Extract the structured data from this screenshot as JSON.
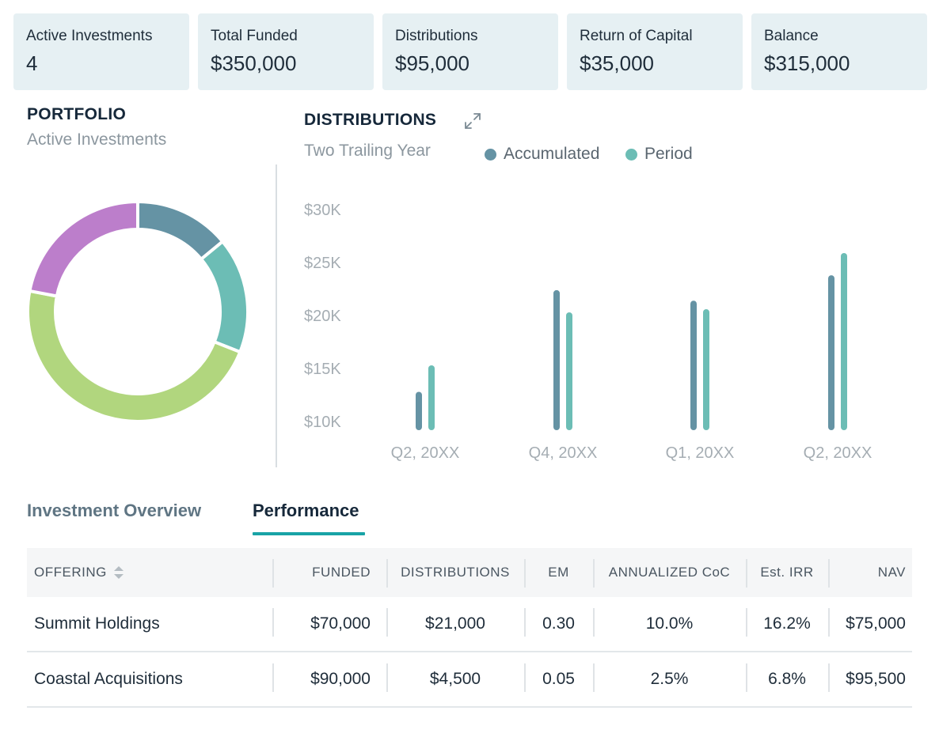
{
  "stats": [
    {
      "label": "Active Investments",
      "value": "4"
    },
    {
      "label": "Total Funded",
      "value": "$350,000"
    },
    {
      "label": "Distributions",
      "value": "$95,000"
    },
    {
      "label": "Return of Capital",
      "value": "$35,000"
    },
    {
      "label": "Balance",
      "value": "$315,000"
    }
  ],
  "portfolio": {
    "title": "PORTFOLIO",
    "subtitle": "Active Investments"
  },
  "distributions": {
    "title": "DISTRIBUTIONS",
    "subtitle": "Two Trailing Year",
    "expand_icon": "expand-icon",
    "legend": [
      {
        "label": "Accumulated",
        "color": "#6593a4"
      },
      {
        "label": "Period",
        "color": "#6cbdb5"
      }
    ]
  },
  "chart_data": [
    {
      "type": "pie",
      "title": "PORTFOLIO",
      "subtitle": "Active Investments",
      "donut": true,
      "slices": [
        {
          "value": 14,
          "color": "#6593a4"
        },
        {
          "value": 17,
          "color": "#6cbdb5"
        },
        {
          "value": 47,
          "color": "#b1d67e"
        },
        {
          "value": 22,
          "color": "#bc7ecb"
        }
      ]
    },
    {
      "type": "bar",
      "title": "DISTRIBUTIONS",
      "subtitle": "Two Trailing Year",
      "categories": [
        "Q2, 20XX",
        "Q4, 20XX",
        "Q1, 20XX",
        "Q2, 20XX"
      ],
      "series": [
        {
          "name": "Accumulated",
          "color": "#6593a4",
          "values": [
            12.5,
            22.1,
            21.1,
            23.5
          ]
        },
        {
          "name": "Period",
          "color": "#6cbdb5",
          "values": [
            15.0,
            20.0,
            20.3,
            25.6
          ]
        }
      ],
      "yticks": [
        "$30K",
        "$25K",
        "$20K",
        "$15K",
        "$10K"
      ],
      "ytick_values": [
        30,
        25,
        20,
        15,
        10
      ],
      "ylim": [
        10,
        30
      ],
      "ylabel": "",
      "xlabel": ""
    }
  ],
  "tabs": {
    "overview": "Investment Overview",
    "performance": "Performance",
    "active": "Performance"
  },
  "table": {
    "headers": [
      "OFFERING",
      "FUNDED",
      "DISTRIBUTIONS",
      "EM",
      "ANNUALIZED CoC",
      "Est. IRR",
      "NAV"
    ],
    "rows": [
      [
        "Summit Holdings",
        "$70,000",
        "$21,000",
        "0.30",
        "10.0%",
        "16.2%",
        "$75,000"
      ],
      [
        "Coastal Acquisitions",
        "$90,000",
        "$4,500",
        "0.05",
        "2.5%",
        "6.8%",
        "$95,500"
      ]
    ]
  }
}
